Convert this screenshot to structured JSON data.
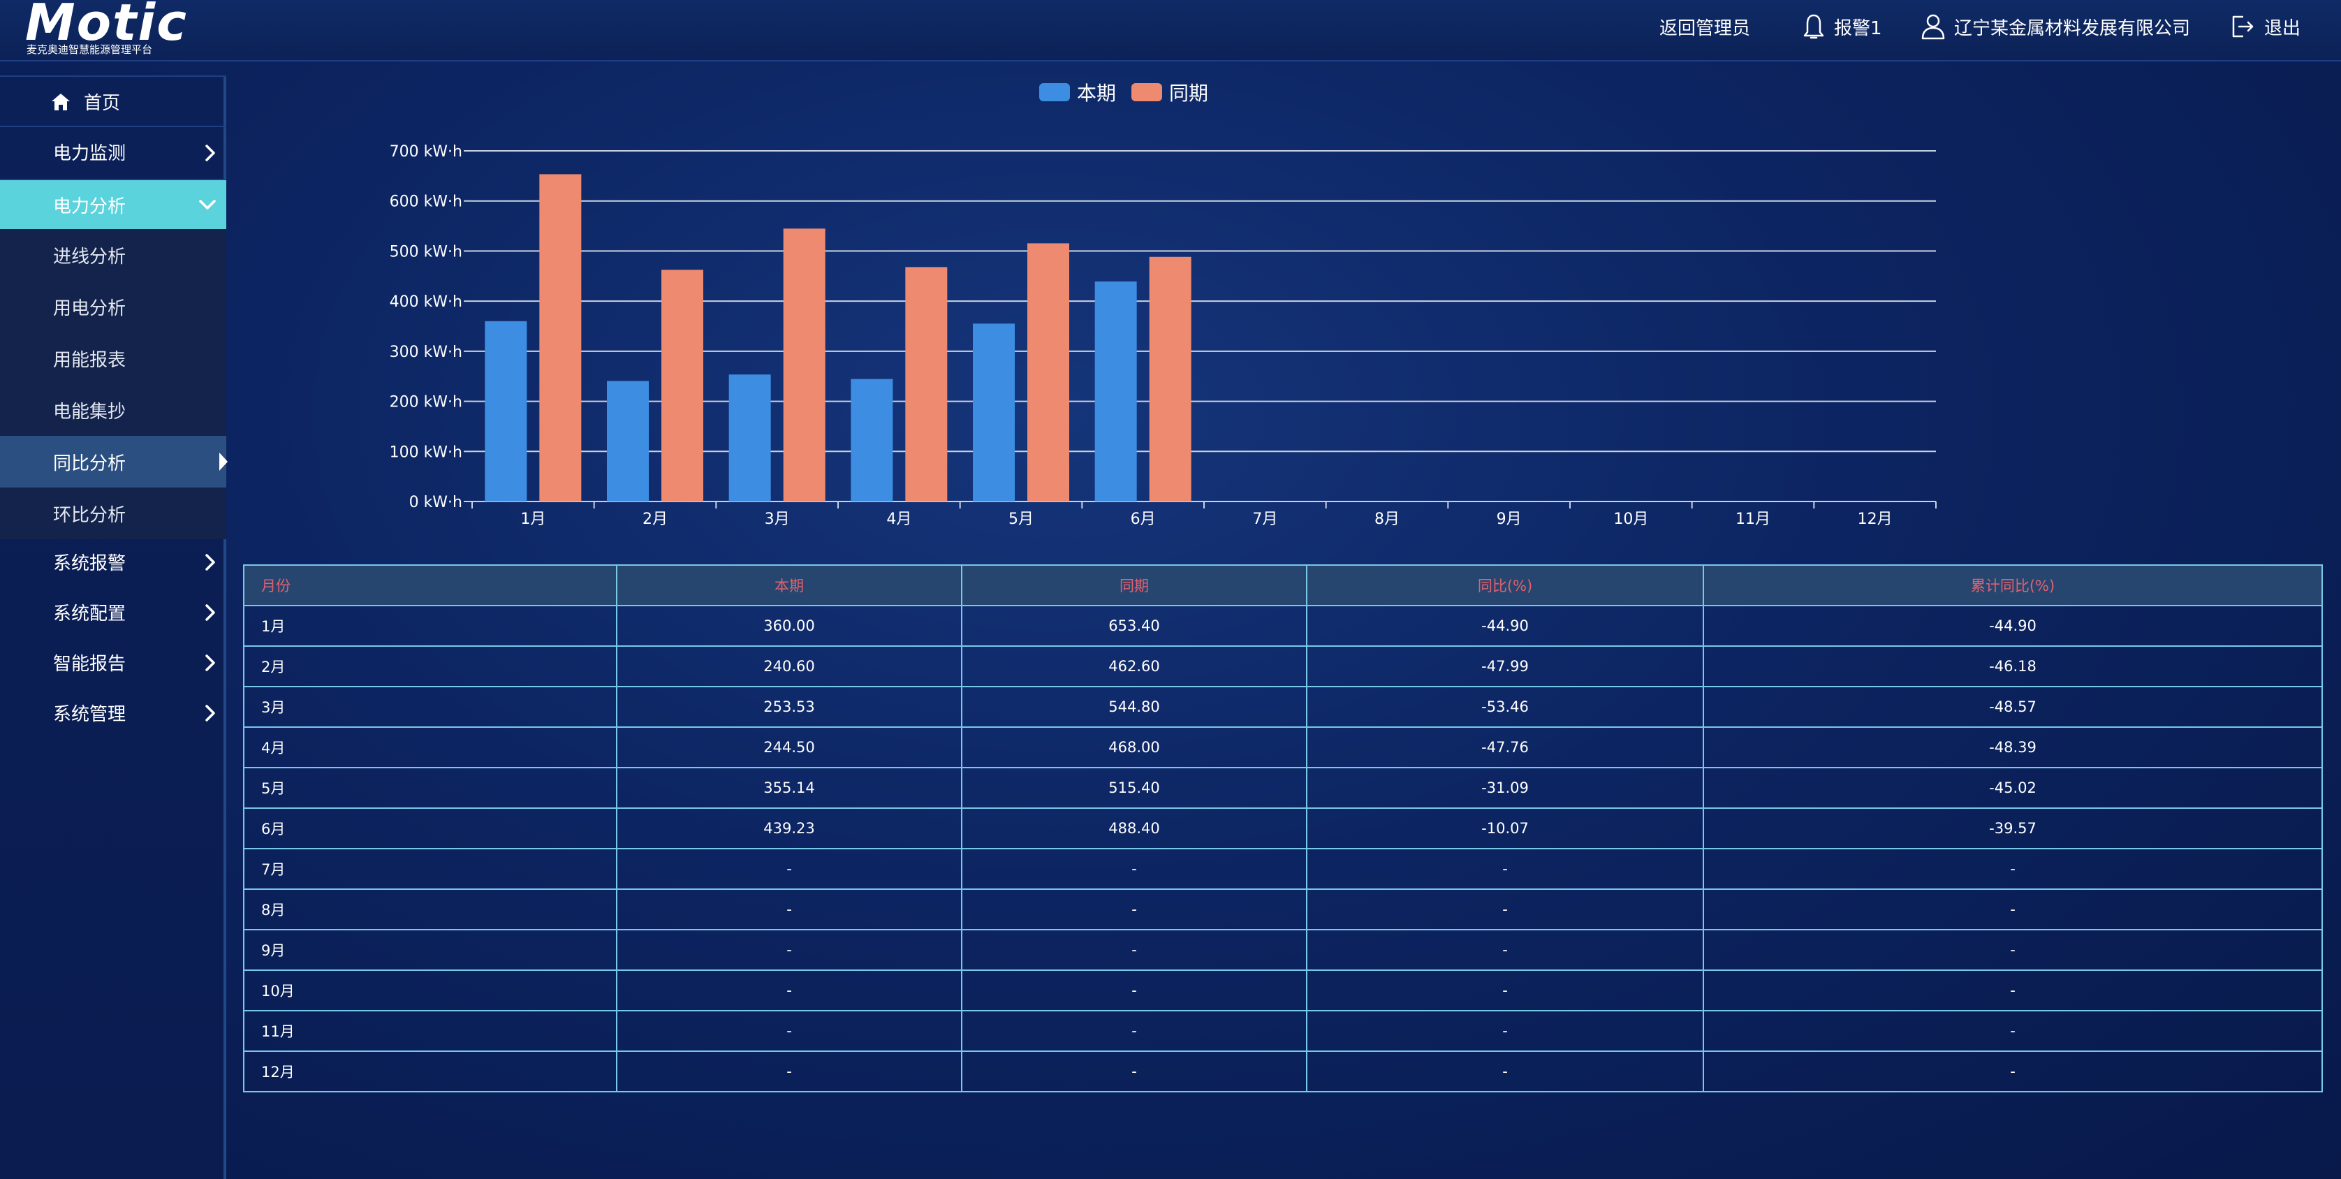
{
  "header": {
    "logo": "Motic",
    "logo_subtitle": "麦克奥迪智慧能源管理平台",
    "back_admin": "返回管理员",
    "alarm": "报警1",
    "company": "辽宁某金属材料发展有限公司",
    "logout": "退出"
  },
  "sidebar": {
    "items": [
      {
        "label": "首页"
      },
      {
        "label": "电力监测"
      },
      {
        "label": "电力分析"
      },
      {
        "label": "进线分析"
      },
      {
        "label": "用电分析"
      },
      {
        "label": "用能报表"
      },
      {
        "label": "电能集抄"
      },
      {
        "label": "同比分析"
      },
      {
        "label": "环比分析"
      },
      {
        "label": "系统报警"
      },
      {
        "label": "系统配置"
      },
      {
        "label": "智能报告"
      },
      {
        "label": "系统管理"
      }
    ]
  },
  "colors": {
    "current": "#3d8ee3",
    "previous": "#ee8a70",
    "active_menu": "#5bd3dc"
  },
  "chart_data": {
    "type": "bar",
    "categories": [
      "1月",
      "2月",
      "3月",
      "4月",
      "5月",
      "6月",
      "7月",
      "8月",
      "9月",
      "10月",
      "11月",
      "12月"
    ],
    "series": [
      {
        "name": "本期",
        "values": [
          360.0,
          240.6,
          253.53,
          244.5,
          355.14,
          439.23,
          null,
          null,
          null,
          null,
          null,
          null
        ]
      },
      {
        "name": "同期",
        "values": [
          653.4,
          462.6,
          544.8,
          468.0,
          515.4,
          488.4,
          null,
          null,
          null,
          null,
          null,
          null
        ]
      }
    ],
    "y_ticks": [
      "0 kW·h",
      "100 kW·h",
      "200 kW·h",
      "300 kW·h",
      "400 kW·h",
      "500 kW·h",
      "600 kW·h",
      "700 kW·h"
    ],
    "ylim": [
      0,
      700
    ],
    "grid": true,
    "legend": "top-center"
  },
  "table": {
    "headers": [
      "月份",
      "本期",
      "同期",
      "同比(%)",
      "累计同比(%)"
    ],
    "rows": [
      [
        "1月",
        "360.00",
        "653.40",
        "-44.90",
        "-44.90"
      ],
      [
        "2月",
        "240.60",
        "462.60",
        "-47.99",
        "-46.18"
      ],
      [
        "3月",
        "253.53",
        "544.80",
        "-53.46",
        "-48.57"
      ],
      [
        "4月",
        "244.50",
        "468.00",
        "-47.76",
        "-48.39"
      ],
      [
        "5月",
        "355.14",
        "515.40",
        "-31.09",
        "-45.02"
      ],
      [
        "6月",
        "439.23",
        "488.40",
        "-10.07",
        "-39.57"
      ],
      [
        "7月",
        "-",
        "-",
        "-",
        "-"
      ],
      [
        "8月",
        "-",
        "-",
        "-",
        "-"
      ],
      [
        "9月",
        "-",
        "-",
        "-",
        "-"
      ],
      [
        "10月",
        "-",
        "-",
        "-",
        "-"
      ],
      [
        "11月",
        "-",
        "-",
        "-",
        "-"
      ],
      [
        "12月",
        "-",
        "-",
        "-",
        "-"
      ]
    ]
  }
}
